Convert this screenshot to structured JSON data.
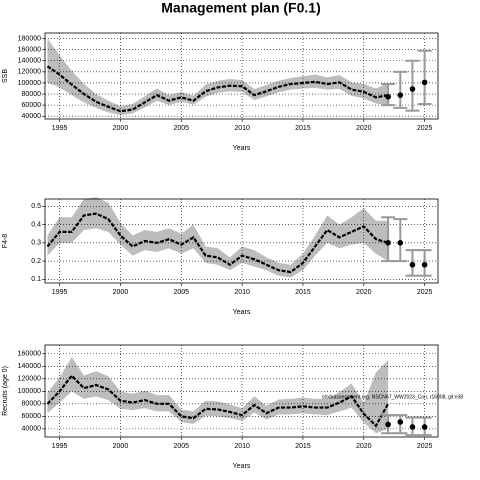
{
  "title": "Management plan (F0.1)",
  "chart_data": [
    {
      "type": "band-line",
      "xlabel": "Years",
      "ylabel": "SSB",
      "x": [
        1994,
        1995,
        1996,
        1997,
        1998,
        1999,
        2000,
        2001,
        2002,
        2003,
        2004,
        2005,
        2006,
        2007,
        2008,
        2009,
        2010,
        2011,
        2012,
        2013,
        2014,
        2015,
        2016,
        2017,
        2018,
        2019,
        2020,
        2021,
        2022
      ],
      "values": [
        130000,
        115000,
        97000,
        80000,
        66000,
        57000,
        49000,
        52000,
        65000,
        78000,
        68000,
        74000,
        68000,
        85000,
        92000,
        95000,
        94000,
        78000,
        85000,
        93000,
        98000,
        100000,
        102000,
        98000,
        101000,
        88000,
        84000,
        74000,
        78000
      ],
      "lower": [
        100000,
        92000,
        78000,
        65000,
        55000,
        47000,
        42000,
        45000,
        56000,
        68000,
        60000,
        66000,
        61000,
        75000,
        82000,
        85000,
        84000,
        69000,
        76000,
        83000,
        88000,
        90000,
        91000,
        88000,
        89000,
        77000,
        72000,
        63000,
        60000
      ],
      "upper": [
        180000,
        150000,
        122000,
        98000,
        80000,
        68000,
        58000,
        62000,
        76000,
        90000,
        78000,
        84000,
        77000,
        97000,
        104000,
        107000,
        105000,
        89000,
        96000,
        104000,
        109000,
        112000,
        115000,
        110000,
        114000,
        101000,
        98000,
        90000,
        100000
      ],
      "proj_x": [
        2022,
        2023,
        2024,
        2025
      ],
      "proj_values": [
        75000,
        78000,
        89000,
        101000
      ],
      "proj_lower": [
        60000,
        55000,
        50000,
        62000
      ],
      "proj_upper": [
        98000,
        120000,
        140000,
        158000
      ],
      "xlim": [
        1993.8,
        2026.1
      ],
      "ylim": [
        35000,
        190000
      ],
      "xticks": [
        1995,
        2000,
        2005,
        2010,
        2015,
        2020,
        2025
      ],
      "yticks": [
        40000,
        60000,
        80000,
        100000,
        120000,
        140000,
        160000,
        180000
      ],
      "grid": true,
      "color": "#000000",
      "band_color": "#bdbdbd",
      "proj_color": "#999999"
    },
    {
      "type": "band-line",
      "xlabel": "Years",
      "ylabel": "F4-8",
      "x": [
        1994,
        1995,
        1996,
        1997,
        1998,
        1999,
        2000,
        2001,
        2002,
        2003,
        2004,
        2005,
        2006,
        2007,
        2008,
        2009,
        2010,
        2011,
        2012,
        2013,
        2014,
        2015,
        2016,
        2017,
        2018,
        2019,
        2020,
        2021,
        2022
      ],
      "values": [
        0.28,
        0.36,
        0.36,
        0.45,
        0.46,
        0.43,
        0.34,
        0.28,
        0.31,
        0.3,
        0.32,
        0.29,
        0.33,
        0.23,
        0.22,
        0.18,
        0.23,
        0.21,
        0.18,
        0.15,
        0.14,
        0.19,
        0.28,
        0.37,
        0.33,
        0.36,
        0.39,
        0.32,
        0.3
      ],
      "lower": [
        0.23,
        0.3,
        0.3,
        0.37,
        0.38,
        0.36,
        0.29,
        0.23,
        0.26,
        0.25,
        0.27,
        0.24,
        0.27,
        0.19,
        0.18,
        0.15,
        0.19,
        0.17,
        0.15,
        0.12,
        0.11,
        0.15,
        0.23,
        0.3,
        0.27,
        0.29,
        0.3,
        0.24,
        0.2
      ],
      "upper": [
        0.34,
        0.44,
        0.44,
        0.54,
        0.55,
        0.52,
        0.41,
        0.34,
        0.37,
        0.36,
        0.38,
        0.35,
        0.4,
        0.28,
        0.27,
        0.22,
        0.28,
        0.26,
        0.22,
        0.19,
        0.18,
        0.24,
        0.34,
        0.45,
        0.4,
        0.44,
        0.49,
        0.42,
        0.42
      ],
      "proj_x": [
        2022,
        2023,
        2024,
        2025
      ],
      "proj_values": [
        0.3,
        0.3,
        0.18,
        0.18
      ],
      "proj_lower": [
        0.2,
        0.2,
        0.12,
        0.12
      ],
      "proj_upper": [
        0.44,
        0.43,
        0.26,
        0.26
      ],
      "xlim": [
        1993.8,
        2026.1
      ],
      "ylim": [
        0.08,
        0.54
      ],
      "xticks": [
        1995,
        2000,
        2005,
        2010,
        2015,
        2020,
        2025
      ],
      "yticks": [
        0.1,
        0.2,
        0.3,
        0.4,
        0.5
      ],
      "grid": true,
      "color": "#000000",
      "band_color": "#bdbdbd",
      "proj_color": "#999999"
    },
    {
      "type": "band-line",
      "xlabel": "Years",
      "ylabel": "Recruits (age 0)",
      "annotation": "stockassessment.org, NSCN67_WW2023_Corr, r16008, git:e38",
      "x": [
        1994,
        1995,
        1996,
        1997,
        1998,
        1999,
        2000,
        2001,
        2002,
        2003,
        2004,
        2005,
        2006,
        2007,
        2008,
        2009,
        2010,
        2011,
        2012,
        2013,
        2014,
        2015,
        2016,
        2017,
        2018,
        2019,
        2020,
        2021,
        2022
      ],
      "values": [
        80000,
        100000,
        125000,
        105000,
        110000,
        103000,
        85000,
        82000,
        86000,
        80000,
        80000,
        60000,
        57000,
        72000,
        71000,
        67000,
        62000,
        78000,
        65000,
        74000,
        74000,
        76000,
        74000,
        74000,
        82000,
        92000,
        64000,
        45000,
        80000
      ],
      "lower": [
        65000,
        82000,
        100000,
        88000,
        92000,
        86000,
        72000,
        70000,
        73000,
        68000,
        68000,
        51000,
        48000,
        61000,
        60000,
        57000,
        53000,
        66000,
        55000,
        63000,
        63000,
        65000,
        63000,
        62000,
        68000,
        74000,
        50000,
        33000,
        40000
      ],
      "upper": [
        98000,
        122000,
        155000,
        125000,
        132000,
        124000,
        100000,
        96000,
        101000,
        94000,
        94000,
        71000,
        68000,
        85000,
        84000,
        79000,
        73000,
        92000,
        77000,
        87000,
        88000,
        90000,
        88000,
        88000,
        99000,
        112000,
        82000,
        130000,
        150000
      ],
      "proj_x": [
        2022,
        2023,
        2024,
        2025
      ],
      "proj_values": [
        47000,
        51000,
        43000,
        43000
      ],
      "proj_lower": [
        33000,
        33000,
        30000,
        30000
      ],
      "proj_upper": [
        62000,
        62000,
        58000,
        58000
      ],
      "xlim": [
        1993.8,
        2026.1
      ],
      "ylim": [
        27000,
        174000
      ],
      "xticks": [
        1995,
        2000,
        2005,
        2010,
        2015,
        2020,
        2025
      ],
      "yticks": [
        40000,
        60000,
        80000,
        100000,
        120000,
        140000,
        160000
      ],
      "grid": true,
      "color": "#000000",
      "band_color": "#bdbdbd",
      "proj_color": "#999999"
    }
  ]
}
